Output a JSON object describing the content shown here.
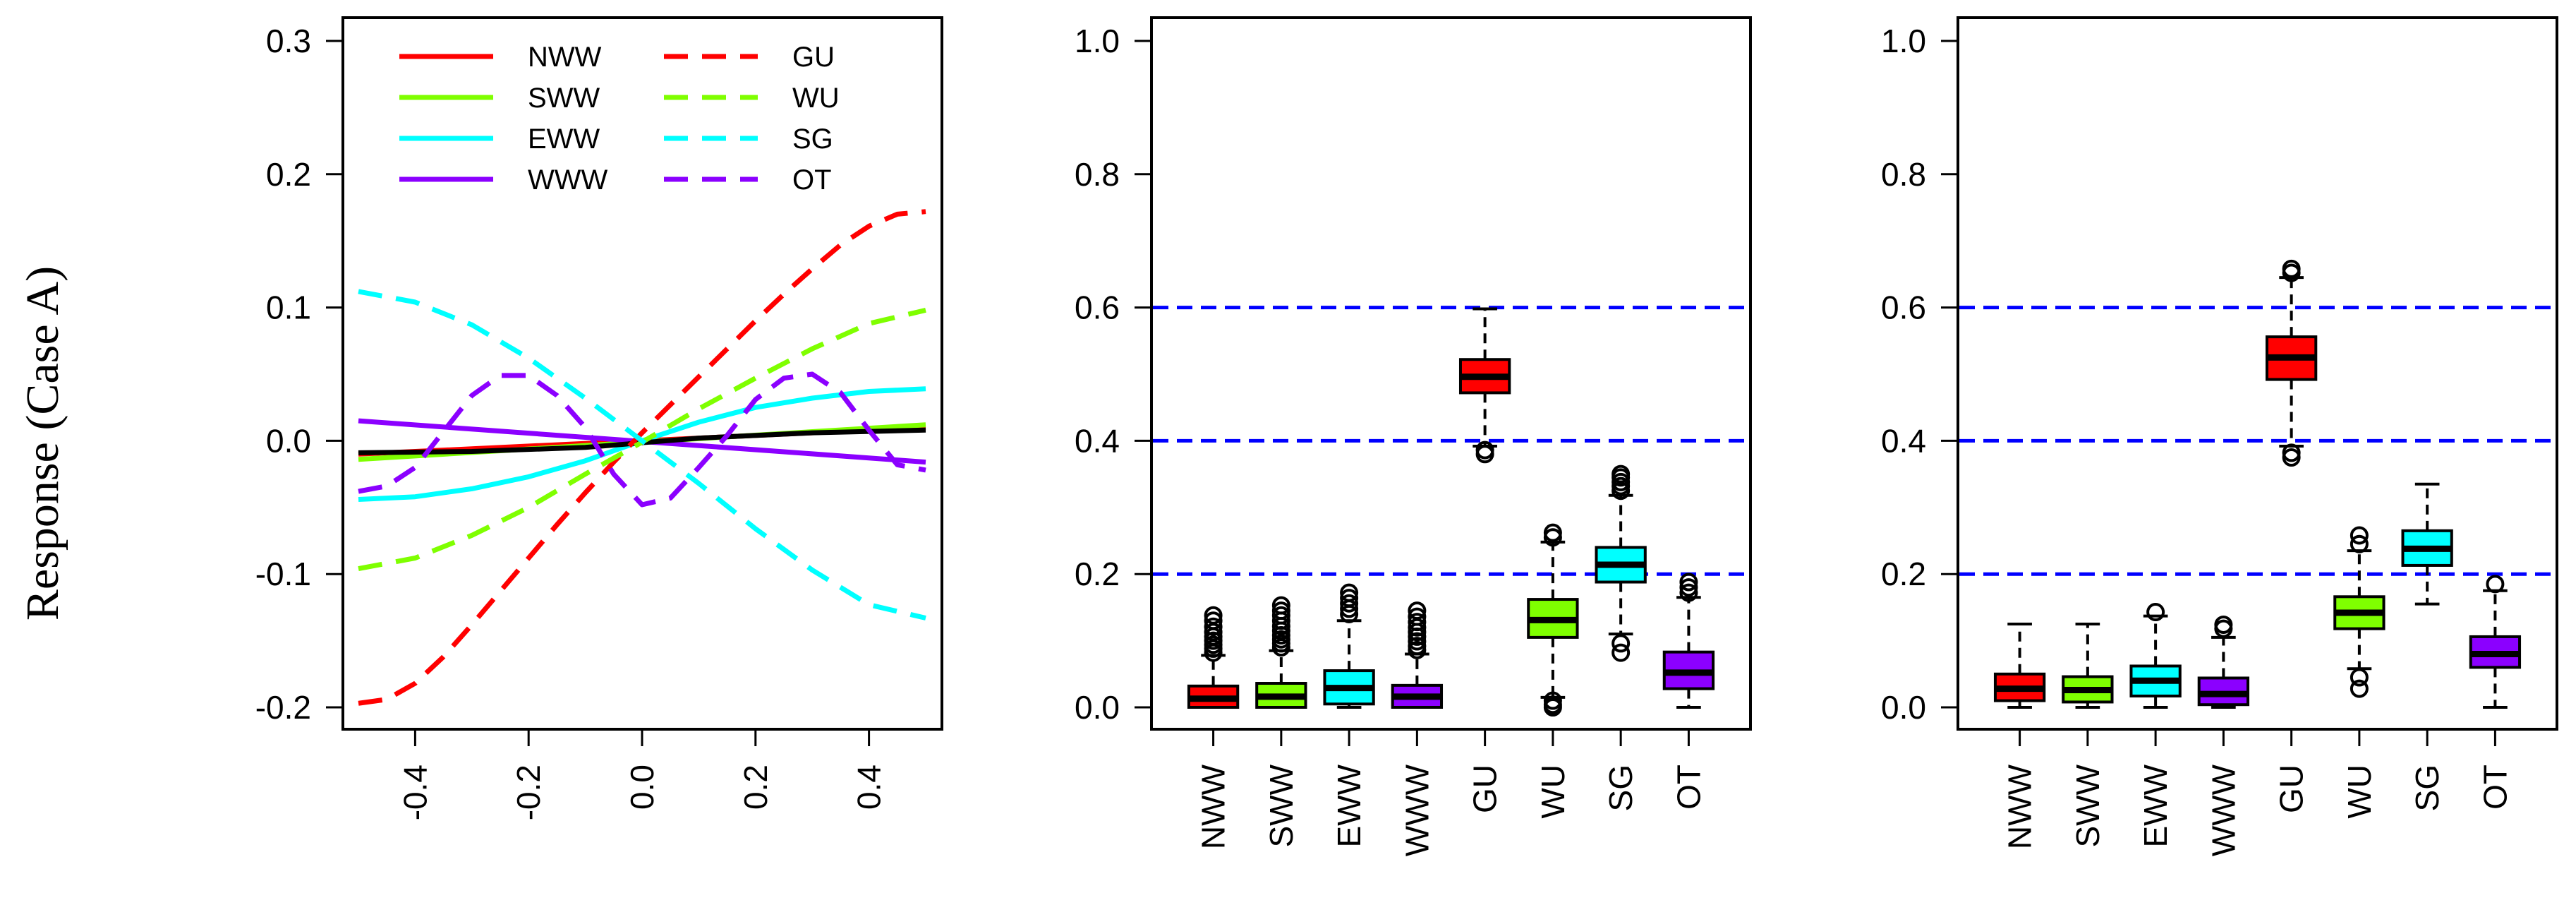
{
  "figure": {
    "ylabel": "Response (Case A)"
  },
  "chart_data": [
    {
      "type": "line",
      "panel": "left",
      "xlim": [
        -0.5,
        0.5
      ],
      "ylim": [
        -0.2,
        0.3
      ],
      "xticks": [
        "-0.4",
        "-0.2",
        "0.0",
        "0.2",
        "0.4"
      ],
      "xtick_values": [
        -0.4,
        -0.2,
        0.0,
        0.2,
        0.4
      ],
      "yticks": [
        "-0.2",
        "-0.1",
        "0.0",
        "0.1",
        "0.2",
        "0.3"
      ],
      "ytick_values": [
        -0.2,
        -0.1,
        0.0,
        0.1,
        0.2,
        0.3
      ],
      "legend": {
        "placement": "top-left",
        "columns": 2
      },
      "series": [
        {
          "name": "NWW",
          "color": "#ff0000",
          "dash": "solid",
          "x": [
            -0.5,
            0.5
          ],
          "y": [
            -0.01,
            0.01
          ]
        },
        {
          "name": "SWW",
          "color": "#7fff00",
          "dash": "solid",
          "x": [
            -0.5,
            0.5
          ],
          "y": [
            -0.014,
            0.012
          ]
        },
        {
          "name": "EWW",
          "color": "#00ffff",
          "dash": "solid",
          "x": [
            -0.5,
            -0.4,
            -0.3,
            -0.2,
            -0.1,
            0.0,
            0.1,
            0.2,
            0.3,
            0.4,
            0.5
          ],
          "y": [
            -0.044,
            -0.042,
            -0.036,
            -0.027,
            -0.015,
            0.0,
            0.014,
            0.025,
            0.032,
            0.037,
            0.039
          ]
        },
        {
          "name": "WWW",
          "color": "#8b00ff",
          "dash": "solid",
          "x": [
            -0.5,
            0.5
          ],
          "y": [
            0.015,
            -0.016
          ]
        },
        {
          "name": "GU",
          "color": "#ff0000",
          "dash": "dashed",
          "x": [
            -0.5,
            -0.45,
            -0.4,
            -0.35,
            -0.3,
            -0.25,
            -0.2,
            -0.15,
            -0.1,
            -0.05,
            0.0,
            0.05,
            0.1,
            0.15,
            0.2,
            0.25,
            0.3,
            0.35,
            0.4,
            0.45,
            0.5
          ],
          "y": [
            -0.197,
            -0.194,
            -0.182,
            -0.162,
            -0.138,
            -0.113,
            -0.088,
            -0.063,
            -0.039,
            -0.016,
            0.006,
            0.027,
            0.048,
            0.069,
            0.09,
            0.11,
            0.129,
            0.147,
            0.161,
            0.17,
            0.172
          ]
        },
        {
          "name": "WU",
          "color": "#7fff00",
          "dash": "dashed",
          "x": [
            -0.5,
            -0.4,
            -0.3,
            -0.2,
            -0.1,
            0.0,
            0.1,
            0.2,
            0.3,
            0.4,
            0.5
          ],
          "y": [
            -0.096,
            -0.088,
            -0.071,
            -0.05,
            -0.025,
            -0.001,
            0.024,
            0.047,
            0.069,
            0.088,
            0.098
          ]
        },
        {
          "name": "SG",
          "color": "#00ffff",
          "dash": "dashed",
          "x": [
            -0.5,
            -0.4,
            -0.3,
            -0.2,
            -0.1,
            0.0,
            0.1,
            0.2,
            0.3,
            0.4,
            0.5
          ],
          "y": [
            0.112,
            0.104,
            0.087,
            0.062,
            0.032,
            0.0,
            -0.032,
            -0.066,
            -0.097,
            -0.123,
            -0.133
          ]
        },
        {
          "name": "OT",
          "color": "#8b00ff",
          "dash": "dashed",
          "x": [
            -0.5,
            -0.45,
            -0.4,
            -0.35,
            -0.3,
            -0.25,
            -0.2,
            -0.15,
            -0.1,
            -0.05,
            0.0,
            0.05,
            0.1,
            0.15,
            0.2,
            0.25,
            0.3,
            0.35,
            0.4,
            0.45,
            0.5
          ],
          "y": [
            -0.038,
            -0.034,
            -0.02,
            0.007,
            0.034,
            0.049,
            0.049,
            0.034,
            0.01,
            -0.025,
            -0.048,
            -0.043,
            -0.02,
            0.004,
            0.031,
            0.047,
            0.05,
            0.036,
            0.008,
            -0.018,
            -0.022
          ]
        },
        {
          "name": "",
          "color": "#000000",
          "dash": "solid",
          "x": [
            -0.5,
            -0.3,
            -0.1,
            0.1,
            0.3,
            0.5
          ],
          "y": [
            -0.009,
            -0.008,
            -0.005,
            0.002,
            0.006,
            0.008
          ]
        }
      ]
    },
    {
      "type": "box",
      "panel": "middle",
      "ylim": [
        0.0,
        1.0
      ],
      "yticks": [
        "0.0",
        "0.2",
        "0.4",
        "0.6",
        "0.8",
        "1.0"
      ],
      "ytick_values": [
        0.0,
        0.2,
        0.4,
        0.6,
        0.8,
        1.0
      ],
      "hlines": [
        0.2,
        0.4,
        0.6
      ],
      "hline_color": "#0000ff",
      "categories": [
        "NWW",
        "SWW",
        "EWW",
        "WWW",
        "GU",
        "WU",
        "SG",
        "OT"
      ],
      "colors": [
        "#ff0000",
        "#7fff00",
        "#00ffff",
        "#8b00ff",
        "#ff0000",
        "#7fff00",
        "#00ffff",
        "#8b00ff"
      ],
      "boxes": [
        {
          "min": 0.0,
          "q1": 0.0,
          "median": 0.013,
          "q3": 0.032,
          "max": 0.078,
          "outliers": [
            0.082,
            0.088,
            0.094,
            0.1,
            0.106,
            0.113,
            0.121,
            0.13,
            0.138
          ]
        },
        {
          "min": 0.0,
          "q1": 0.0,
          "median": 0.016,
          "q3": 0.036,
          "max": 0.085,
          "outliers": [
            0.09,
            0.096,
            0.102,
            0.108,
            0.115,
            0.122,
            0.13,
            0.138,
            0.145,
            0.153
          ]
        },
        {
          "min": 0.0,
          "q1": 0.005,
          "median": 0.029,
          "q3": 0.055,
          "max": 0.13,
          "outliers": [
            0.14,
            0.148,
            0.156,
            0.164,
            0.172
          ]
        },
        {
          "min": 0.0,
          "q1": 0.0,
          "median": 0.016,
          "q3": 0.033,
          "max": 0.08,
          "outliers": [
            0.086,
            0.092,
            0.099,
            0.106,
            0.113,
            0.12,
            0.128,
            0.136,
            0.145
          ]
        },
        {
          "min": 0.392,
          "q1": 0.472,
          "median": 0.496,
          "q3": 0.522,
          "max": 0.598,
          "outliers": [
            0.38,
            0.386
          ]
        },
        {
          "min": 0.015,
          "q1": 0.105,
          "median": 0.131,
          "q3": 0.162,
          "max": 0.248,
          "outliers": [
            0.0,
            0.004,
            0.01,
            0.255,
            0.262
          ]
        },
        {
          "min": 0.11,
          "q1": 0.188,
          "median": 0.214,
          "q3": 0.24,
          "max": 0.318,
          "outliers": [
            0.082,
            0.096,
            0.325,
            0.332,
            0.338,
            0.345,
            0.35
          ]
        },
        {
          "min": 0.0,
          "q1": 0.028,
          "median": 0.052,
          "q3": 0.083,
          "max": 0.165,
          "outliers": [
            0.172,
            0.18,
            0.188
          ]
        }
      ]
    },
    {
      "type": "box",
      "panel": "right",
      "ylim": [
        0.0,
        1.0
      ],
      "yticks": [
        "0.0",
        "0.2",
        "0.4",
        "0.6",
        "0.8",
        "1.0"
      ],
      "ytick_values": [
        0.0,
        0.2,
        0.4,
        0.6,
        0.8,
        1.0
      ],
      "hlines": [
        0.2,
        0.4,
        0.6
      ],
      "hline_color": "#0000ff",
      "categories": [
        "NWW",
        "SWW",
        "EWW",
        "WWW",
        "GU",
        "WU",
        "SG",
        "OT"
      ],
      "colors": [
        "#ff0000",
        "#7fff00",
        "#00ffff",
        "#8b00ff",
        "#ff0000",
        "#7fff00",
        "#00ffff",
        "#8b00ff"
      ],
      "boxes": [
        {
          "min": 0.0,
          "q1": 0.01,
          "median": 0.028,
          "q3": 0.05,
          "max": 0.125,
          "outliers": []
        },
        {
          "min": 0.0,
          "q1": 0.008,
          "median": 0.026,
          "q3": 0.046,
          "max": 0.125,
          "outliers": []
        },
        {
          "min": 0.0,
          "q1": 0.017,
          "median": 0.04,
          "q3": 0.062,
          "max": 0.137,
          "outliers": [
            0.143
          ]
        },
        {
          "min": 0.0,
          "q1": 0.004,
          "median": 0.02,
          "q3": 0.044,
          "max": 0.105,
          "outliers": [
            0.118,
            0.124
          ]
        },
        {
          "min": 0.392,
          "q1": 0.492,
          "median": 0.525,
          "q3": 0.556,
          "max": 0.645,
          "outliers": [
            0.375,
            0.382,
            0.652,
            0.658
          ]
        },
        {
          "min": 0.058,
          "q1": 0.118,
          "median": 0.142,
          "q3": 0.166,
          "max": 0.235,
          "outliers": [
            0.028,
            0.045,
            0.245,
            0.258
          ]
        },
        {
          "min": 0.155,
          "q1": 0.213,
          "median": 0.238,
          "q3": 0.265,
          "max": 0.335,
          "outliers": []
        },
        {
          "min": 0.0,
          "q1": 0.06,
          "median": 0.08,
          "q3": 0.106,
          "max": 0.175,
          "outliers": [
            0.185
          ]
        }
      ]
    }
  ]
}
